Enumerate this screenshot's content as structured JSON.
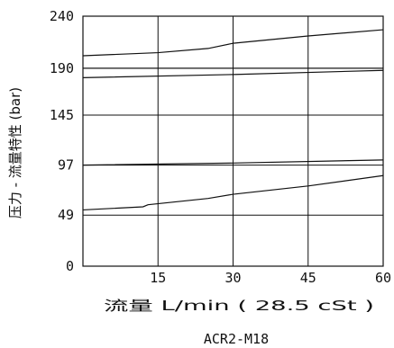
{
  "chart_data": {
    "type": "line",
    "title": "",
    "xlabel": "流量 L/min ( 28.5 cSt )",
    "ylabel": "压力 - 流量特性 (bar)",
    "model": "ACR2-M18",
    "xlim": [
      0,
      60
    ],
    "ylim": [
      0,
      240
    ],
    "x_ticks": [
      15,
      30,
      45,
      60
    ],
    "y_ticks": [
      0,
      49,
      97,
      145,
      190,
      240
    ],
    "grid": true,
    "series": [
      {
        "x": [
          0,
          15,
          25,
          30,
          45,
          60
        ],
        "y": [
          202,
          205,
          209,
          214,
          221,
          227
        ]
      },
      {
        "x": [
          0,
          30,
          60
        ],
        "y": [
          190,
          190,
          190
        ]
      },
      {
        "x": [
          0,
          30,
          60
        ],
        "y": [
          181,
          184,
          188
        ]
      },
      {
        "x": [
          0,
          30,
          60
        ],
        "y": [
          97,
          99,
          102
        ]
      },
      {
        "x": [
          0,
          12,
          13,
          25,
          30,
          45,
          60
        ],
        "y": [
          54,
          57,
          59,
          65,
          69,
          77,
          87
        ]
      }
    ]
  }
}
